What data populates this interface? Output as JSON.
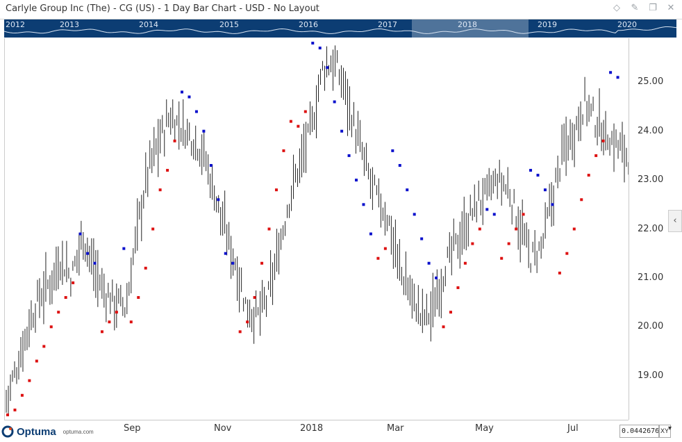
{
  "window": {
    "title": "Carlyle Group Inc (The) - CG (US) - 1 Day Bar Chart - USD - No Layout"
  },
  "overview": {
    "years": [
      "2012",
      "2013",
      "2014",
      "2015",
      "2016",
      "2017",
      "2018",
      "2019",
      "2020"
    ]
  },
  "brand": {
    "name": "Optuma",
    "url": "optuma.com"
  },
  "toolbar": {
    "cursor_value": "0.0442676",
    "xy_label": "XY"
  },
  "chart_data": {
    "type": "bar",
    "subtype": "ohlc-bar-with-parabolic-sar",
    "xlabel": "",
    "ylabel": "",
    "x_ticks": [
      "Sep",
      "Nov",
      "2018",
      "Mar",
      "May",
      "Jul"
    ],
    "y_ticks": [
      19.0,
      20.0,
      21.0,
      22.0,
      23.0,
      24.0,
      25.0
    ],
    "ylim": [
      18.1,
      25.9
    ],
    "grid": false,
    "colors": {
      "bar": "#222222",
      "sar_up": "#dd1111",
      "sar_down": "#0a10cc",
      "overview_bg": "#0c3d73"
    },
    "price_path": [
      18.5,
      19.2,
      20.0,
      20.6,
      20.9,
      21.4,
      21.0,
      21.9,
      21.2,
      20.7,
      20.5,
      20.4,
      22.0,
      23.2,
      23.8,
      24.3,
      24.1,
      23.9,
      23.6,
      22.8,
      22.0,
      21.3,
      20.4,
      20.2,
      20.6,
      21.6,
      22.7,
      23.4,
      24.1,
      25.3,
      25.4,
      24.9,
      24.0,
      23.2,
      22.6,
      22.2,
      21.2,
      20.7,
      20.2,
      20.3,
      21.1,
      21.6,
      22.0,
      22.5,
      22.7,
      23.0,
      22.8,
      22.1,
      21.4,
      21.6,
      22.6,
      23.6,
      24.0,
      24.6,
      24.2,
      23.9,
      23.7,
      23.5
    ],
    "sar_series": [
      {
        "name": "",
        "trend": "up",
        "values": [
          18.2,
          18.3,
          18.6,
          18.9,
          19.3,
          19.6,
          20.0,
          20.3,
          20.6,
          20.9
        ]
      },
      {
        "name": "",
        "trend": "down",
        "values": [
          21.9,
          21.5,
          21.3
        ]
      },
      {
        "name": "",
        "trend": "up",
        "values": [
          19.9,
          20.1,
          20.3
        ]
      },
      {
        "name": "",
        "trend": "down",
        "values": [
          21.6
        ]
      },
      {
        "name": "",
        "trend": "up",
        "values": [
          20.1,
          20.6,
          21.2,
          22.0,
          22.8,
          23.2,
          23.8
        ]
      },
      {
        "name": "",
        "trend": "down",
        "values": [
          24.8,
          24.7,
          24.4,
          24.0,
          23.3,
          22.6
        ]
      },
      {
        "name": "",
        "trend": "down",
        "values": [
          21.5,
          21.3
        ]
      },
      {
        "name": "",
        "trend": "up",
        "values": [
          19.9,
          20.1,
          20.6,
          21.3,
          22.0,
          22.8,
          23.6,
          24.2
        ]
      },
      {
        "name": "",
        "trend": "up",
        "values": [
          24.1,
          24.4
        ]
      },
      {
        "name": "",
        "trend": "down",
        "values": [
          25.8,
          25.7,
          25.3,
          24.6,
          24.0,
          23.5,
          23.0,
          22.5,
          21.9
        ]
      },
      {
        "name": "",
        "trend": "up",
        "values": [
          21.4,
          21.6
        ]
      },
      {
        "name": "",
        "trend": "down",
        "values": [
          23.6,
          23.3,
          22.8,
          22.3,
          21.8,
          21.3,
          21.0
        ]
      },
      {
        "name": "",
        "trend": "up",
        "values": [
          20.0,
          20.3,
          20.8,
          21.3,
          21.7,
          22.0
        ]
      },
      {
        "name": "",
        "trend": "down",
        "values": [
          22.4,
          22.3
        ]
      },
      {
        "name": "",
        "trend": "up",
        "values": [
          21.4,
          21.7,
          22.0,
          22.3
        ]
      },
      {
        "name": "",
        "trend": "down",
        "values": [
          23.2,
          23.1,
          22.8,
          22.5
        ]
      },
      {
        "name": "",
        "trend": "up",
        "values": [
          21.1,
          21.5,
          22.0,
          22.6,
          23.1,
          23.5,
          23.8
        ]
      },
      {
        "name": "",
        "trend": "down",
        "values": [
          25.2,
          25.1
        ]
      }
    ]
  }
}
